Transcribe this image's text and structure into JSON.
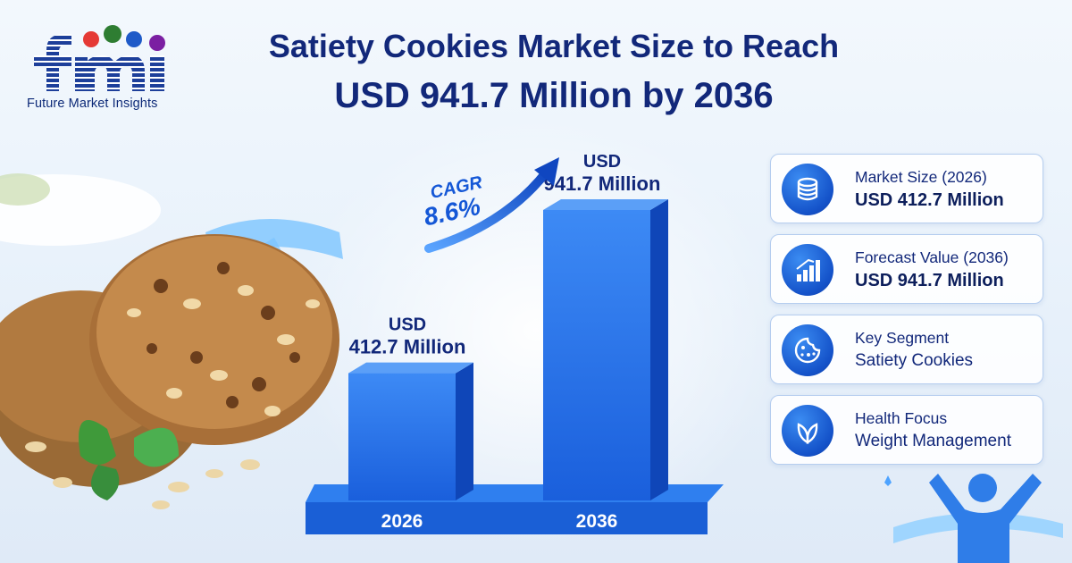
{
  "brand": {
    "logo_letters": "fmi",
    "name": "Future Market Insights"
  },
  "title": {
    "line1": "Satiety Cookies Market Size to Reach",
    "line2": "USD 941.7 Million by 2036"
  },
  "chart_data": {
    "type": "bar",
    "categories": [
      "2026",
      "2036"
    ],
    "values": [
      412.7,
      941.7
    ],
    "value_labels": [
      {
        "prefix": "USD",
        "text": "412.7 Million"
      },
      {
        "prefix": "USD",
        "text": "941.7 Million"
      }
    ],
    "annotation": {
      "label": "CAGR",
      "value": "8.6%"
    },
    "colors": {
      "bar": "#1f6fe6",
      "bar_side": "#0f46b8",
      "base": "#1a5fd6"
    }
  },
  "cards": [
    {
      "icon": "coins-icon",
      "label": "Market Size (2026)",
      "value": "USD 412.7 Million",
      "bold": true
    },
    {
      "icon": "bar-growth-icon",
      "label": "Forecast Value (2036)",
      "value": "USD 941.7 Million",
      "bold": true
    },
    {
      "icon": "cookie-icon",
      "label": "Key Segment",
      "value": "Satiety Cookies",
      "bold": false
    },
    {
      "icon": "leaf-icon",
      "label": "Health Focus",
      "value": "Weight Management",
      "bold": false
    }
  ],
  "colors": {
    "navy": "#12287a",
    "accent": "#1457d6",
    "card_border": "#b5cdef"
  }
}
